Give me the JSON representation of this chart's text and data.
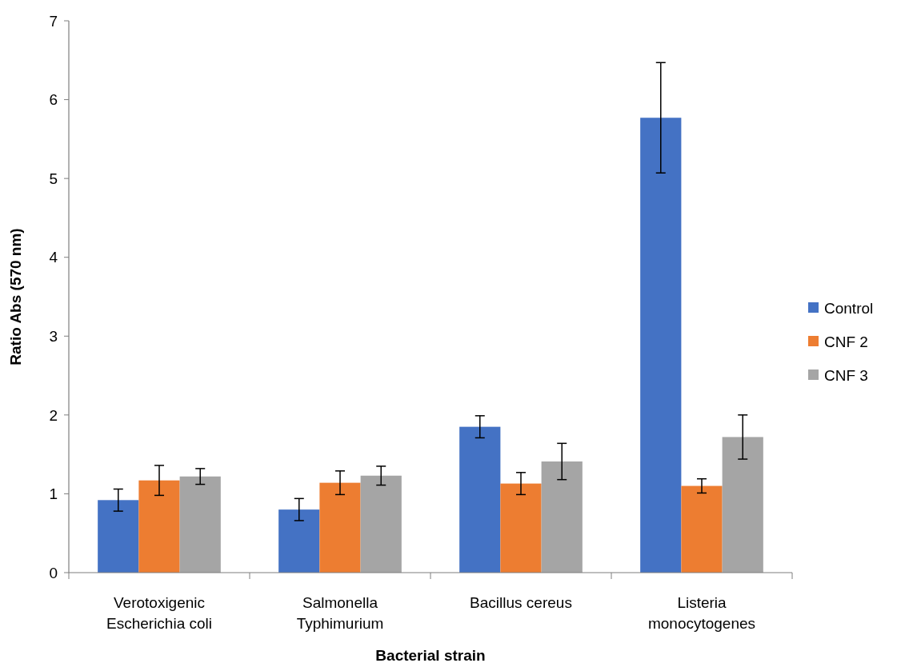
{
  "chart_data": {
    "type": "bar",
    "xlabel": "Bacterial strain",
    "ylabel": "Ratio Abs (570 nm)",
    "categories": [
      "Verotoxigenic Escherichia coli",
      "Salmonella Typhimurium",
      "Bacillus cereus",
      "Listeria monocytogenes"
    ],
    "series": [
      {
        "name": "Control",
        "color": "#4472c4",
        "values": [
          0.92,
          0.8,
          1.85,
          5.77
        ],
        "errors": [
          0.14,
          0.14,
          0.14,
          0.7
        ]
      },
      {
        "name": "CNF 2",
        "color": "#ed7d31",
        "values": [
          1.17,
          1.14,
          1.13,
          1.1
        ],
        "errors": [
          0.19,
          0.15,
          0.14,
          0.09
        ]
      },
      {
        "name": "CNF 3",
        "color": "#a5a5a5",
        "values": [
          1.22,
          1.23,
          1.41,
          1.72
        ],
        "errors": [
          0.1,
          0.12,
          0.23,
          0.28
        ]
      }
    ],
    "ylim": [
      0,
      7
    ],
    "yticks": [
      0,
      1,
      2,
      3,
      4,
      5,
      6,
      7
    ],
    "grid": false,
    "legend": "right"
  }
}
